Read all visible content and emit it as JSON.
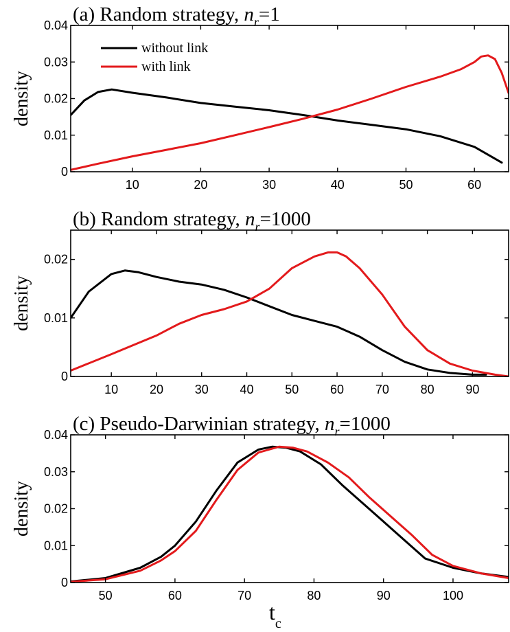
{
  "chart_data": [
    {
      "type": "line",
      "title_prefix": "(a) Random strategy, ",
      "title_var": "n",
      "title_sub": "r",
      "title_suffix": "=1",
      "xlabel": "",
      "ylabel": "density",
      "xlim": [
        1,
        65
      ],
      "ylim": [
        0,
        0.04
      ],
      "xticks": [
        10,
        20,
        30,
        40,
        50,
        60
      ],
      "yticks": [
        0,
        0.01,
        0.02,
        0.03,
        0.04
      ],
      "ytick_labels": [
        "0",
        "0.01",
        "0.02",
        "0.03",
        "0.04"
      ],
      "legend": {
        "position": "top-left"
      },
      "grid": false,
      "series": [
        {
          "name": "without link",
          "color": "#000000",
          "x": [
            1,
            3,
            5,
            7,
            10,
            15,
            20,
            25,
            30,
            35,
            40,
            45,
            50,
            55,
            60,
            64
          ],
          "y": [
            0.0155,
            0.0195,
            0.0218,
            0.0225,
            0.0216,
            0.0203,
            0.0188,
            0.0178,
            0.0168,
            0.0155,
            0.014,
            0.0128,
            0.0116,
            0.0097,
            0.0068,
            0.0025
          ]
        },
        {
          "name": "with link",
          "color": "#e31a1c",
          "x": [
            1,
            5,
            10,
            15,
            20,
            25,
            30,
            35,
            40,
            45,
            50,
            55,
            58,
            60,
            61,
            62,
            63,
            64,
            65
          ],
          "y": [
            0.0005,
            0.0022,
            0.0042,
            0.006,
            0.0078,
            0.01,
            0.0122,
            0.0145,
            0.017,
            0.02,
            0.0232,
            0.026,
            0.028,
            0.03,
            0.0315,
            0.0318,
            0.0308,
            0.027,
            0.0215
          ]
        }
      ]
    },
    {
      "type": "line",
      "title_prefix": "(b) Random strategy, ",
      "title_var": "n",
      "title_sub": "r",
      "title_suffix": "=1000",
      "xlabel": "",
      "ylabel": "density",
      "xlim": [
        1,
        98
      ],
      "ylim": [
        0,
        0.025
      ],
      "xticks": [
        10,
        20,
        30,
        40,
        50,
        60,
        70,
        80,
        90
      ],
      "yticks": [
        0,
        0.01,
        0.02
      ],
      "ytick_labels": [
        "0",
        "0.01",
        "0.02"
      ],
      "grid": false,
      "series": [
        {
          "name": "without link",
          "color": "#000000",
          "x": [
            1,
            5,
            10,
            13,
            16,
            20,
            25,
            30,
            35,
            40,
            45,
            50,
            55,
            60,
            65,
            70,
            75,
            80,
            85,
            90,
            93
          ],
          "y": [
            0.01,
            0.0145,
            0.0175,
            0.0181,
            0.0178,
            0.017,
            0.0162,
            0.0157,
            0.0148,
            0.0135,
            0.012,
            0.0105,
            0.0095,
            0.0085,
            0.0068,
            0.0045,
            0.0025,
            0.0012,
            0.0006,
            0.0003,
            0.0003
          ]
        },
        {
          "name": "with link",
          "color": "#e31a1c",
          "x": [
            1,
            10,
            20,
            25,
            30,
            35,
            40,
            45,
            50,
            55,
            58,
            60,
            62,
            65,
            70,
            75,
            80,
            85,
            90,
            95,
            98
          ],
          "y": [
            0.001,
            0.0038,
            0.007,
            0.009,
            0.0105,
            0.0115,
            0.0128,
            0.015,
            0.0185,
            0.0205,
            0.0212,
            0.0212,
            0.0205,
            0.0185,
            0.014,
            0.0085,
            0.0045,
            0.0022,
            0.001,
            0.0003,
            0.0
          ]
        }
      ]
    },
    {
      "type": "line",
      "title_prefix": "(c) Pseudo-Darwinian strategy, ",
      "title_var": "n",
      "title_sub": "r",
      "title_suffix": "=1000",
      "xlabel_main": "t",
      "xlabel_sub": "c",
      "ylabel": "density",
      "xlim": [
        45,
        108
      ],
      "ylim": [
        0,
        0.04
      ],
      "xticks": [
        50,
        60,
        70,
        80,
        90,
        100
      ],
      "yticks": [
        0,
        0.01,
        0.02,
        0.03,
        0.04
      ],
      "ytick_labels": [
        "0",
        "0.01",
        "0.02",
        "0.03",
        "0.04"
      ],
      "grid": false,
      "series": [
        {
          "name": "without link",
          "color": "#000000",
          "x": [
            45,
            50,
            55,
            58,
            60,
            63,
            66,
            69,
            72,
            74,
            76,
            78,
            81,
            84,
            87,
            90,
            93,
            96,
            100,
            104,
            108
          ],
          "y": [
            0.0003,
            0.0012,
            0.004,
            0.007,
            0.01,
            0.0165,
            0.025,
            0.0325,
            0.036,
            0.0368,
            0.0365,
            0.0355,
            0.032,
            0.0265,
            0.0215,
            0.0165,
            0.0115,
            0.0065,
            0.004,
            0.0025,
            0.0015
          ]
        },
        {
          "name": "with link",
          "color": "#e31a1c",
          "x": [
            45,
            50,
            55,
            58,
            60,
            63,
            66,
            69,
            72,
            75,
            77,
            79,
            82,
            85,
            88,
            91,
            94,
            97,
            100,
            104,
            108
          ],
          "y": [
            0.0002,
            0.0009,
            0.0032,
            0.006,
            0.0085,
            0.014,
            0.0225,
            0.0305,
            0.0352,
            0.0368,
            0.0365,
            0.0355,
            0.0325,
            0.0285,
            0.023,
            0.018,
            0.013,
            0.0075,
            0.0045,
            0.0025,
            0.0012
          ]
        }
      ]
    }
  ]
}
